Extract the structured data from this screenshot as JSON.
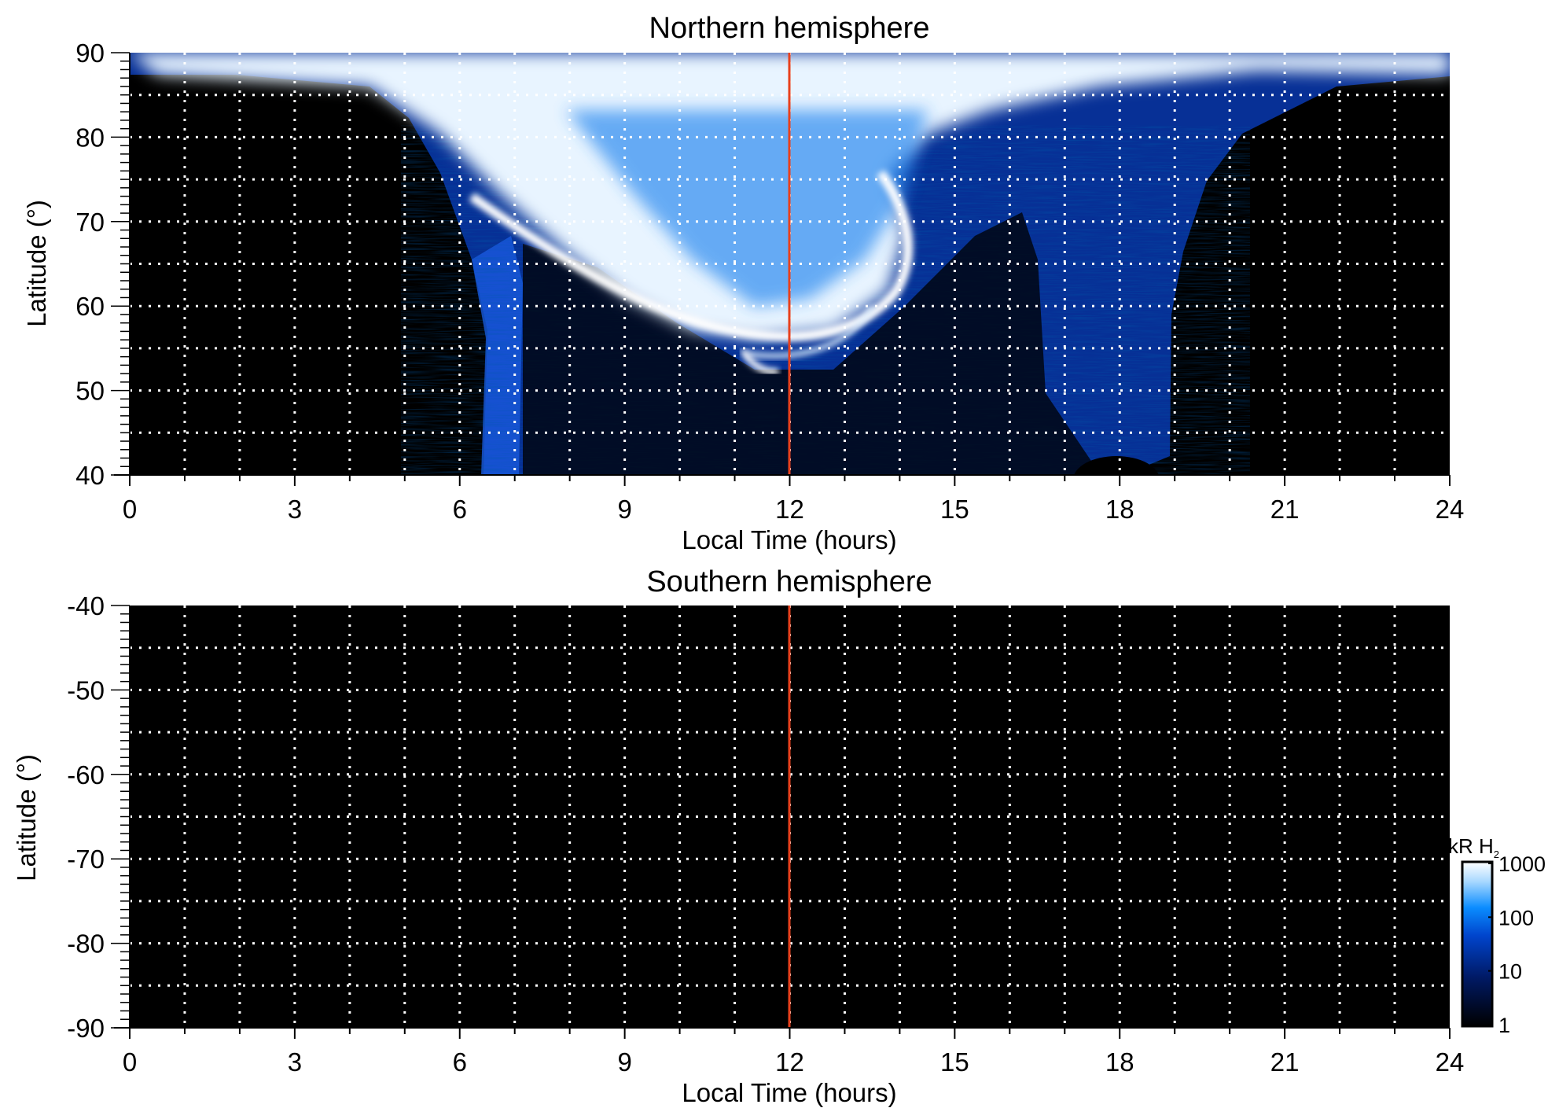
{
  "chart_data": [
    {
      "type": "heatmap",
      "id": "north",
      "title": "Northern hemisphere",
      "xlabel": "Local Time (hours)",
      "ylabel": "Latitude (°)",
      "xlim": [
        0,
        24
      ],
      "ylim": [
        40,
        90
      ],
      "xticks": [
        "0",
        "3",
        "6",
        "9",
        "12",
        "15",
        "18",
        "21",
        "24"
      ],
      "yticks": [
        "40",
        "50",
        "60",
        "70",
        "80",
        "90"
      ],
      "ytick_values": [
        40,
        50,
        60,
        70,
        80,
        90
      ],
      "grid": "dotted white, every 1 h and every 5°",
      "marker_line": {
        "x": 12,
        "color": "#e8401c"
      },
      "description_features": {
        "dayside_emission_lt_range": [
          6.5,
          19
        ],
        "auroral_oval_min_latitude": 52
      }
    },
    {
      "type": "heatmap",
      "id": "south",
      "title": "Southern hemisphere",
      "xlabel": "Local Time (hours)",
      "ylabel": "Latitude (°)",
      "xlim": [
        0,
        24
      ],
      "ylim": [
        -90,
        -40
      ],
      "xticks": [
        "0",
        "3",
        "6",
        "9",
        "12",
        "15",
        "18",
        "21",
        "24"
      ],
      "yticks": [
        "-40",
        "-50",
        "-60",
        "-70",
        "-80",
        "-90"
      ],
      "ytick_values": [
        -40,
        -50,
        -60,
        -70,
        -80,
        -90
      ],
      "grid": "dotted white, every 1 h and every 5°",
      "marker_line": {
        "x": 12,
        "color": "#e8401c"
      }
    }
  ],
  "colorbar": {
    "label": "kR H",
    "label_sub": "2",
    "scale": "log",
    "range": [
      1,
      1000
    ],
    "ticks": [
      "1000",
      "100",
      "10",
      "1"
    ],
    "colors": [
      "#000000",
      "#001a66",
      "#0044cc",
      "#0a8cff",
      "#a8d8ff",
      "#ffffff"
    ]
  }
}
